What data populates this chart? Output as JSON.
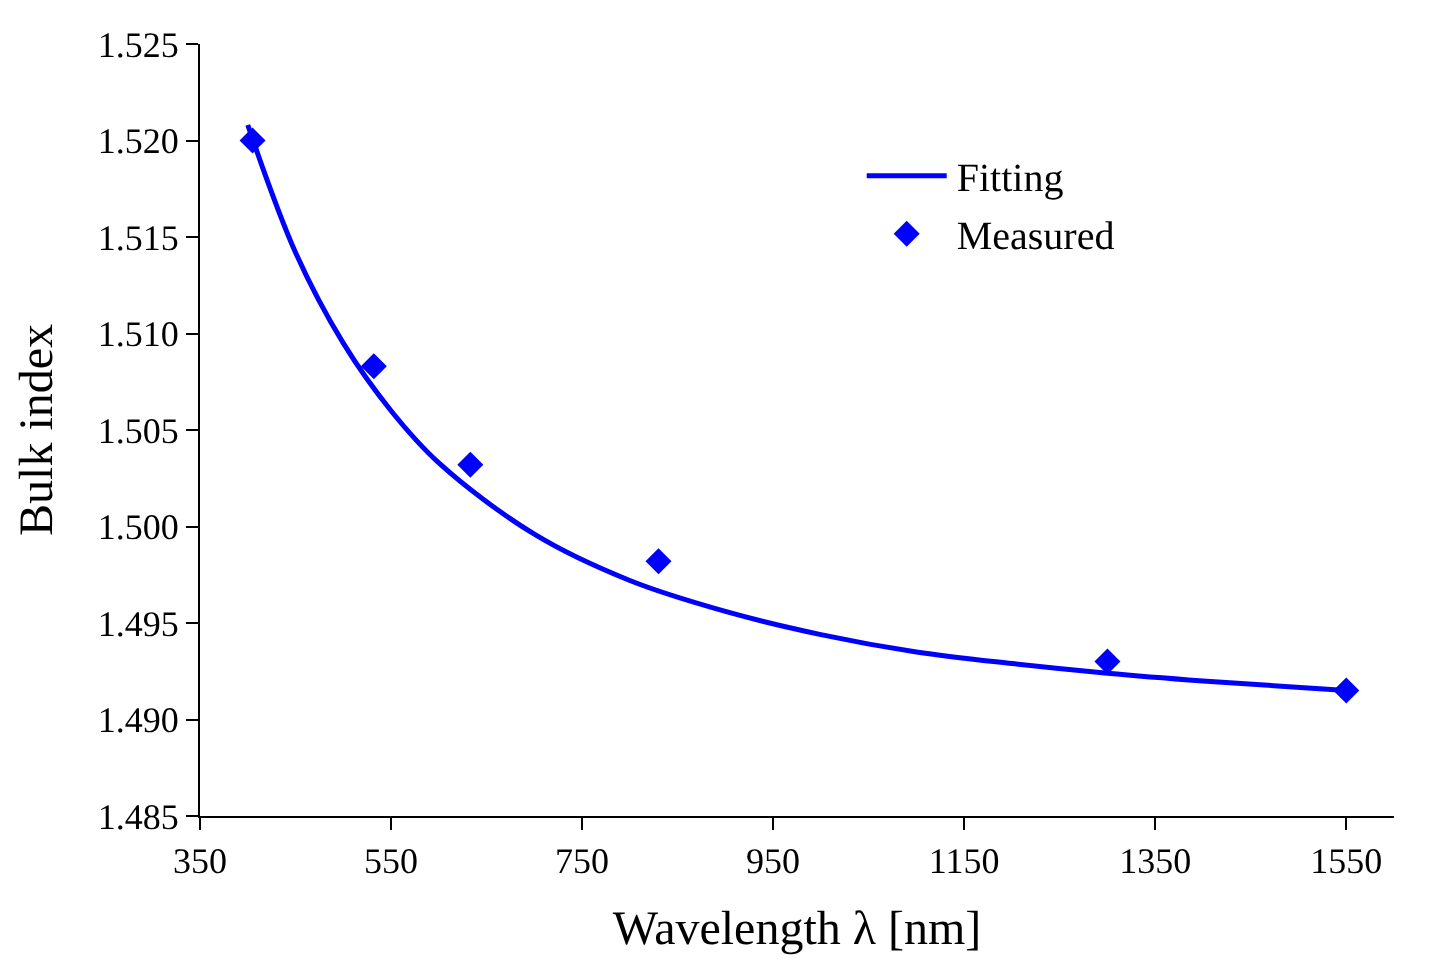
{
  "chart_data": {
    "type": "scatter",
    "xlabel": "Wavelength λ [nm]",
    "ylabel": "Bulk index",
    "series": [
      {
        "name": "Fitting",
        "type": "line",
        "color": "#0000ff",
        "marker": "none",
        "line_style": "solid",
        "x": [
          400,
          450,
          500,
          550,
          600,
          700,
          800,
          900,
          1000,
          1100,
          1200,
          1300,
          1400,
          1550
        ],
        "values": [
          1.5208,
          1.5142,
          1.5095,
          1.506,
          1.5033,
          1.4996,
          1.4972,
          1.4956,
          1.4944,
          1.4935,
          1.4929,
          1.4924,
          1.492,
          1.4915
        ]
      },
      {
        "name": "Measured",
        "color": "#0000ff",
        "marker": "diamond",
        "x": [
          405,
          532,
          633,
          830,
          1300,
          1550
        ],
        "values": [
          1.52,
          1.5083,
          1.5032,
          1.4982,
          1.493,
          1.4915
        ]
      }
    ],
    "xlim": [
      350,
      1600
    ],
    "xticks": [
      350,
      550,
      750,
      950,
      1150,
      1350,
      1550
    ],
    "ylim": [
      1.485,
      1.525
    ],
    "yticks": [
      {
        "value": 1.485,
        "label": "1.485"
      },
      {
        "value": 1.49,
        "label": "1.490"
      },
      {
        "value": 1.495,
        "label": "1.495"
      },
      {
        "value": 1.5,
        "label": "1.500"
      },
      {
        "value": 1.505,
        "label": "1.505"
      },
      {
        "value": 1.51,
        "label": "1.510"
      },
      {
        "value": 1.515,
        "label": "1.515"
      },
      {
        "value": 1.52,
        "label": "1.520"
      },
      {
        "value": 1.525,
        "label": "1.525"
      }
    ],
    "legend": "top right"
  }
}
